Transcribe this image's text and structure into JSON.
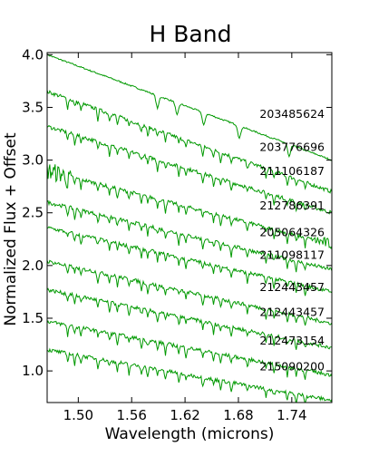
{
  "chart_data": {
    "type": "line",
    "title": "H Band",
    "xlabel": "Wavelength (microns)",
    "ylabel": "Normalized Flux + Offset",
    "xlim": [
      1.465,
      1.785
    ],
    "ylim": [
      0.7,
      4.02
    ],
    "xticks": [
      1.5,
      1.56,
      1.62,
      1.68,
      1.74
    ],
    "xtick_labels": [
      "1.50",
      "1.56",
      "1.62",
      "1.68",
      "1.74"
    ],
    "yticks": [
      1.0,
      1.5,
      2.0,
      2.5,
      3.0,
      3.5,
      4.0
    ],
    "ytick_labels": [
      "1.0",
      "1.5",
      "2.0",
      "2.5",
      "3.0",
      "3.5",
      "4.0"
    ],
    "grid": false,
    "line_color": "#009900",
    "series": [
      {
        "name": "203485624",
        "x": [
          1.465,
          1.785
        ],
        "y": [
          4.0,
          3.0
        ]
      },
      {
        "name": "203776696",
        "x": [
          1.465,
          1.785
        ],
        "y": [
          3.65,
          2.7
        ]
      },
      {
        "name": "211106187",
        "x": [
          1.465,
          1.785
        ],
        "y": [
          3.32,
          2.5
        ]
      },
      {
        "name": "212786391",
        "x": [
          1.465,
          1.785
        ],
        "y": [
          2.9,
          2.2
        ]
      },
      {
        "name": "205064326",
        "x": [
          1.465,
          1.785
        ],
        "y": [
          2.6,
          1.96
        ]
      },
      {
        "name": "211098117",
        "x": [
          1.465,
          1.785
        ],
        "y": [
          2.36,
          1.75
        ]
      },
      {
        "name": "212443457",
        "x": [
          1.465,
          1.785
        ],
        "y": [
          2.04,
          1.45
        ]
      },
      {
        "name": "212443457",
        "x": [
          1.465,
          1.785
        ],
        "y": [
          1.77,
          1.22
        ]
      },
      {
        "name": "212473154",
        "x": [
          1.465,
          1.785
        ],
        "y": [
          1.47,
          0.96
        ]
      },
      {
        "name": "215090200",
        "x": [
          1.465,
          1.785
        ],
        "y": [
          1.2,
          0.72
        ]
      }
    ]
  }
}
